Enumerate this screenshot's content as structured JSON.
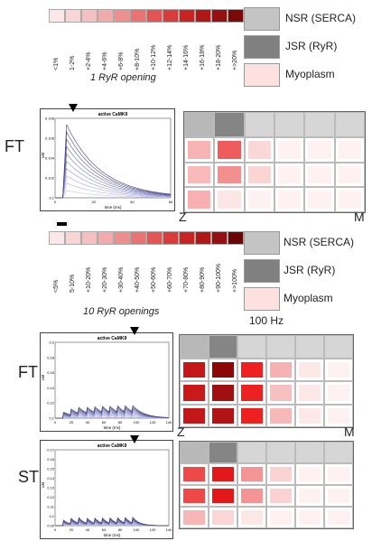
{
  "top_scale": {
    "ticks": [
      "<1%",
      "1-2%",
      "+2-4%",
      "+4-6%",
      "+6-8%",
      "+8-10%",
      "+10-12%",
      "+12-14%",
      "+14-16%",
      "+16-18%",
      "+18-20%",
      "+>20%"
    ],
    "colors": [
      "#fce8e8",
      "#f9d6d6",
      "#f5c0c0",
      "#f2aaaa",
      "#ee8f8f",
      "#e97272",
      "#e35555",
      "#d93a3a",
      "#c82424",
      "#b01818",
      "#951010",
      "#7a0808"
    ]
  },
  "bottom_scale": {
    "ticks": [
      "<5%",
      "5-10%",
      "+10-20%",
      "+20-30%",
      "+30-40%",
      "+40-50%",
      "+50-60%",
      "+60-70%",
      "+70-80%",
      "+80-90%",
      "+90-100%",
      "+>100%"
    ],
    "colors": [
      "#fce8e8",
      "#f9d6d6",
      "#f5c0c0",
      "#f2aaaa",
      "#ee8f8f",
      "#e97272",
      "#e35555",
      "#d93a3a",
      "#c82424",
      "#b01818",
      "#951010",
      "#6a0505"
    ]
  },
  "legend_top": {
    "items": [
      {
        "label": "NSR (SERCA)",
        "color": "#c4c4c4"
      },
      {
        "label": "JSR (RyR)",
        "color": "#808080"
      },
      {
        "label": "Myoplasm",
        "color": "#fde0e0"
      }
    ]
  },
  "legend_bottom": {
    "items": [
      {
        "label": "NSR (SERCA)",
        "color": "#c4c4c4"
      },
      {
        "label": "JSR (RyR)",
        "color": "#808080"
      },
      {
        "label": "Myoplasm",
        "color": "#fde0e0"
      }
    ]
  },
  "titles": {
    "section1": "1 RyR opening",
    "section2": "10 RyR openings",
    "freq": "100 Hz"
  },
  "labels": {
    "ft1": "FT",
    "ft2": "FT",
    "st": "ST",
    "z1": "Z",
    "m1": "M",
    "z2": "Z",
    "m2": "M"
  },
  "plots": {
    "p1": {
      "title": "active CaMKII",
      "ylabel": "uM",
      "xlabel": "time (ms)",
      "yticks": [
        "0.108",
        "0.106",
        "0.104",
        "0.102",
        "0.1"
      ],
      "xticks": [
        "0",
        "20",
        "40",
        "60"
      ]
    },
    "p2": {
      "title": "active CaMKII",
      "ylabel": "uM",
      "xlabel": "time (ms)",
      "yticks": [
        "0.2",
        "0.18",
        "0.16",
        "0.14",
        "0.12",
        "0.1"
      ],
      "xticks": [
        "0",
        "20",
        "40",
        "60",
        "80",
        "100",
        "120",
        "140"
      ]
    },
    "p3": {
      "title": "active CaMKII",
      "ylabel": "uM",
      "xlabel": "time (ms)",
      "yticks": [
        "0.17",
        "0.16",
        "0.15",
        "0.14",
        "0.13",
        "0.12",
        "0.11",
        "0.1",
        "0.09"
      ],
      "xticks": [
        "0",
        "20",
        "40",
        "60",
        "80",
        "100",
        "120",
        "140"
      ]
    }
  },
  "grids": {
    "g1": {
      "header": [
        "#b8b8b8",
        "#858585",
        "#d6d6d6",
        "#d6d6d6",
        "#d6d6d6",
        "#d6d6d6"
      ],
      "rows": [
        [
          "#f8b4b4",
          "#ee5c5c",
          "#fbd8d8",
          "#fdf1f1",
          "#fdf1f1",
          "#fdf1f1"
        ],
        [
          "#f8baba",
          "#f29090",
          "#fbd4d4",
          "#fdf1f1",
          "#fdf1f1",
          "#fdf1f1"
        ],
        [
          "#f8b0b0",
          "#fde6e6",
          "#fdf1f1",
          "#fdf1f1",
          "#fdf1f1",
          "#fdf1f1"
        ]
      ]
    },
    "g2": {
      "header": [
        "#b8b8b8",
        "#858585",
        "#d6d6d6",
        "#d6d6d6",
        "#d6d6d6",
        "#d6d6d6"
      ],
      "rows": [
        [
          "#c41818",
          "#8c0808",
          "#f02020",
          "#f6b2b2",
          "#fde8e8",
          "#fdf1f1"
        ],
        [
          "#c81a1a",
          "#a01010",
          "#ee2020",
          "#f6c0c0",
          "#fde8e8",
          "#fdf1f1"
        ],
        [
          "#c41818",
          "#b01414",
          "#ee2020",
          "#f6b8b8",
          "#fde8e8",
          "#fdf1f1"
        ]
      ]
    },
    "g3": {
      "header": [
        "#b8b8b8",
        "#858585",
        "#d6d6d6",
        "#d6d6d6",
        "#d6d6d6",
        "#d6d6d6"
      ],
      "rows": [
        [
          "#ee4848",
          "#e41818",
          "#f49494",
          "#fbd2d2",
          "#fdf1f1",
          "#fdf1f1"
        ],
        [
          "#ee4848",
          "#e41818",
          "#f49494",
          "#fbd2d2",
          "#fdf1f1",
          "#fdf1f1"
        ],
        [
          "#f6b6b6",
          "#fbd6d6",
          "#fde8e8",
          "#fdf1f1",
          "#fdf1f1",
          "#fdf1f1"
        ]
      ]
    }
  }
}
